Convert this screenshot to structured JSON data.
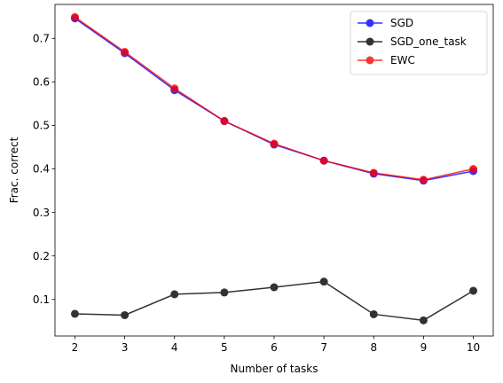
{
  "chart_data": {
    "type": "line",
    "title": "",
    "xlabel": "Number of tasks",
    "ylabel": "Frac. correct",
    "x": [
      2,
      3,
      4,
      5,
      6,
      7,
      8,
      9,
      10
    ],
    "xlim": [
      1.6,
      10.4
    ],
    "ylim": [
      0.016,
      0.778
    ],
    "xticks": [
      2,
      3,
      4,
      5,
      6,
      7,
      8,
      9,
      10
    ],
    "yticks": [
      0.1,
      0.2,
      0.3,
      0.4,
      0.5,
      0.6,
      0.7
    ],
    "grid": false,
    "legend_position": "top-right",
    "series": [
      {
        "name": "SGD",
        "color": "#0000ff",
        "values": [
          0.746,
          0.666,
          0.581,
          0.51,
          0.456,
          0.419,
          0.389,
          0.373,
          0.395
        ]
      },
      {
        "name": "SGD_one_task",
        "color": "#000000",
        "values": [
          0.067,
          0.064,
          0.112,
          0.116,
          0.128,
          0.141,
          0.066,
          0.052,
          0.12
        ]
      },
      {
        "name": "EWC",
        "color": "#ff0000",
        "values": [
          0.749,
          0.669,
          0.585,
          0.51,
          0.458,
          0.419,
          0.391,
          0.375,
          0.4
        ]
      }
    ]
  }
}
